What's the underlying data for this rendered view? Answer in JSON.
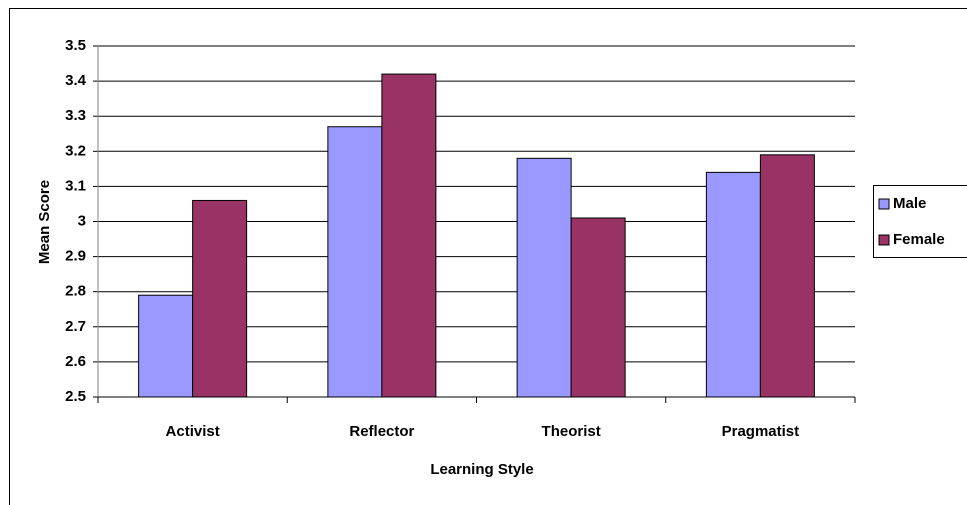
{
  "chart_data": {
    "type": "bar",
    "xlabel": "Learning Style",
    "ylabel": "Mean Score",
    "categories": [
      "Activist",
      "Reflector",
      "Theorist",
      "Pragmatist"
    ],
    "series": [
      {
        "name": "Male",
        "color": "#9999ff",
        "values": [
          2.79,
          3.27,
          3.18,
          3.14
        ]
      },
      {
        "name": "Female",
        "color": "#993366",
        "values": [
          3.06,
          3.42,
          3.01,
          3.19
        ]
      }
    ],
    "ylim": [
      2.5,
      3.5
    ],
    "yticks": [
      2.5,
      2.6,
      2.7,
      2.8,
      2.9,
      3,
      3.1,
      3.2,
      3.3,
      3.4,
      3.5
    ],
    "grid": true,
    "legend": "right"
  }
}
